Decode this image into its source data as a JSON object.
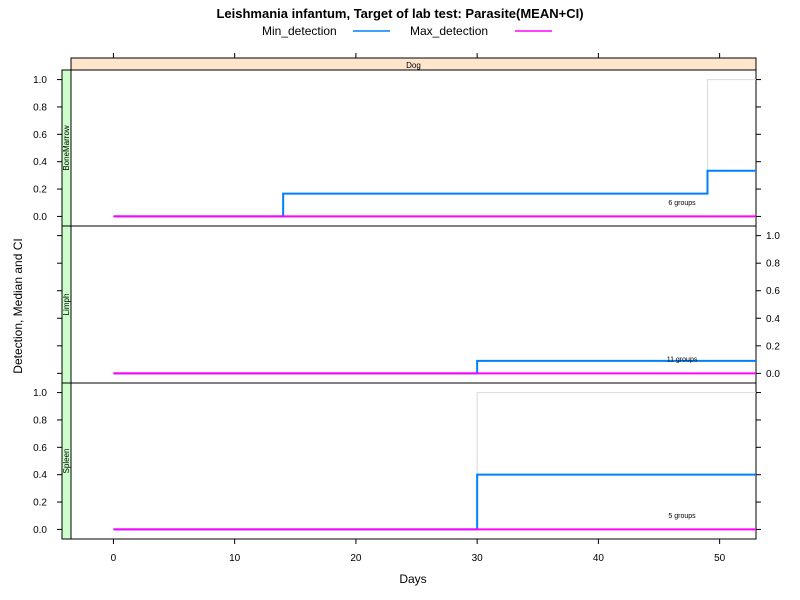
{
  "chart_data": {
    "type": "line",
    "title": "Leishmania infantum, Target of lab test: Parasite(MEAN+CI)",
    "xlabel": "Days",
    "ylabel": "Detection, Median and CI",
    "strip": "Dog",
    "xlim": [
      -3.5,
      53
    ],
    "ylim": [
      -0.07,
      1.07
    ],
    "x_ticks": [
      0,
      10,
      20,
      30,
      40,
      50
    ],
    "y_ticks": [
      "0.0",
      "0.2",
      "0.4",
      "0.6",
      "0.8",
      "1.0"
    ],
    "legend": {
      "position": "top",
      "entries": [
        {
          "name": "Min_detection",
          "color": "#0080ff"
        },
        {
          "name": "Max_detection",
          "color": "#ff00ff"
        }
      ]
    },
    "colors": {
      "strip_top": "#ffe5cc",
      "strip_side": "#ccffcc",
      "ci_line": "#d9d9d9"
    },
    "panels": [
      {
        "name": "BoneMarrow",
        "annotation": "6 groups",
        "yaxis_side": "left",
        "series": [
          {
            "name": "Min_detection",
            "x": [
              0,
              14,
              14,
              49,
              49,
              53
            ],
            "y": [
              0,
              0,
              0.1667,
              0.1667,
              0.3333,
              0.3333
            ]
          },
          {
            "name": "Max_detection",
            "x": [
              0,
              53
            ],
            "y": [
              0,
              0
            ]
          }
        ],
        "ci": {
          "x": [
            49,
            49,
            53
          ],
          "y": [
            0.3333,
            1.0,
            1.0
          ]
        }
      },
      {
        "name": "Limph",
        "annotation": "11 groups",
        "yaxis_side": "right",
        "series": [
          {
            "name": "Min_detection",
            "x": [
              0,
              30,
              30,
              53
            ],
            "y": [
              0,
              0,
              0.0909,
              0.0909
            ]
          },
          {
            "name": "Max_detection",
            "x": [
              0,
              53
            ],
            "y": [
              0,
              0
            ]
          }
        ],
        "ci": null
      },
      {
        "name": "Spleen",
        "annotation": "5 groups",
        "yaxis_side": "left",
        "series": [
          {
            "name": "Min_detection",
            "x": [
              0,
              30,
              30,
              53
            ],
            "y": [
              0,
              0,
              0.4,
              0.4
            ]
          },
          {
            "name": "Max_detection",
            "x": [
              0,
              53
            ],
            "y": [
              0,
              0
            ]
          }
        ],
        "ci": {
          "x": [
            30,
            30,
            53
          ],
          "y": [
            0.4,
            1.0,
            1.0
          ]
        }
      }
    ]
  }
}
